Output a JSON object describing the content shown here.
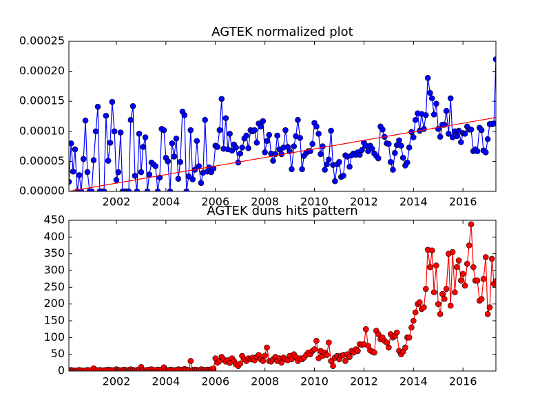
{
  "chart_data": [
    {
      "type": "line",
      "title": "AGTEK normalized plot",
      "x": [
        2000.08,
        2000.17,
        2000.25,
        2000.33,
        2000.42,
        2000.5,
        2000.58,
        2000.67,
        2000.75,
        2000.83,
        2000.92,
        2001,
        2001.08,
        2001.17,
        2001.25,
        2001.33,
        2001.42,
        2001.5,
        2001.58,
        2001.67,
        2001.75,
        2001.83,
        2001.92,
        2002,
        2002.08,
        2002.17,
        2002.25,
        2002.33,
        2002.42,
        2002.5,
        2002.58,
        2002.67,
        2002.75,
        2002.83,
        2002.92,
        2003,
        2003.08,
        2003.17,
        2003.25,
        2003.33,
        2003.42,
        2003.5,
        2003.58,
        2003.67,
        2003.75,
        2003.83,
        2003.92,
        2004,
        2004.08,
        2004.17,
        2004.25,
        2004.33,
        2004.42,
        2004.5,
        2004.58,
        2004.67,
        2004.75,
        2004.83,
        2004.92,
        2005,
        2005.08,
        2005.17,
        2005.25,
        2005.33,
        2005.42,
        2005.5,
        2005.58,
        2005.67,
        2005.75,
        2005.83,
        2005.92,
        2006,
        2006.08,
        2006.17,
        2006.25,
        2006.33,
        2006.42,
        2006.5,
        2006.58,
        2006.67,
        2006.75,
        2006.83,
        2006.92,
        2007,
        2007.08,
        2007.17,
        2007.25,
        2007.33,
        2007.42,
        2007.5,
        2007.58,
        2007.67,
        2007.75,
        2007.83,
        2007.92,
        2008,
        2008.08,
        2008.17,
        2008.25,
        2008.33,
        2008.42,
        2008.5,
        2008.58,
        2008.67,
        2008.75,
        2008.83,
        2008.92,
        2009,
        2009.08,
        2009.17,
        2009.25,
        2009.33,
        2009.42,
        2009.5,
        2009.58,
        2009.67,
        2009.75,
        2009.83,
        2009.92,
        2010,
        2010.08,
        2010.17,
        2010.25,
        2010.33,
        2010.42,
        2010.5,
        2010.58,
        2010.67,
        2010.75,
        2010.83,
        2010.92,
        2011,
        2011.08,
        2011.17,
        2011.25,
        2011.33,
        2011.42,
        2011.5,
        2011.58,
        2011.67,
        2011.75,
        2011.83,
        2011.92,
        2012,
        2012.08,
        2012.17,
        2012.25,
        2012.33,
        2012.42,
        2012.5,
        2012.58,
        2012.67,
        2012.75,
        2012.83,
        2012.92,
        2013,
        2013.08,
        2013.17,
        2013.25,
        2013.33,
        2013.42,
        2013.5,
        2013.58,
        2013.67,
        2013.75,
        2013.83,
        2013.92,
        2014,
        2014.08,
        2014.17,
        2014.25,
        2014.33,
        2014.42,
        2014.5,
        2014.58,
        2014.67,
        2014.75,
        2014.83,
        2014.92,
        2015,
        2015.08,
        2015.17,
        2015.25,
        2015.33,
        2015.42,
        2015.5,
        2015.58,
        2015.67,
        2015.75,
        2015.83,
        2015.92,
        2016,
        2016.08,
        2016.17,
        2016.25,
        2016.33,
        2016.42,
        2016.5,
        2016.58,
        2016.67,
        2016.75,
        2016.83,
        2016.92,
        2017,
        2017.08,
        2017.17,
        2017.25,
        2017.33
      ],
      "series": [
        {
          "color": "#0000ff",
          "values": [
            1.6e-05,
            8e-05,
            3.3e-05,
            7e-05,
            0,
            2.7e-05,
            0,
            5.4e-05,
            0.000118,
            3.2e-05,
            0,
            0,
            5.2e-05,
            0.0001,
            0.000141,
            0,
            0,
            0,
            0.000126,
            5.1e-05,
            8.1e-05,
            0.000149,
            0.0001,
            1.9e-05,
            3.2e-05,
            9.8e-05,
            0,
            0,
            0,
            0,
            0.000119,
            0.000142,
            2.6e-05,
            0,
            9.6e-05,
            3.2e-05,
            7.4e-05,
            9e-05,
            0,
            2.8e-05,
            4.8e-05,
            4.5e-05,
            4.2e-05,
            0,
            2.3e-05,
            0.000104,
            0.000102,
            5.6e-05,
            5e-05,
            0,
            8e-05,
            5.8e-05,
            8.8e-05,
            2.1e-05,
            4.9e-05,
            0.000133,
            0.000127,
            0,
            2.5e-05,
            0.000102,
            2e-05,
            3.6e-05,
            8.4e-05,
            4.2e-05,
            1.4e-05,
            3.1e-05,
            0.000119,
            3.3e-05,
            4e-05,
            3.2e-05,
            3.8e-05,
            7.6e-05,
            7.4e-05,
            0.000102,
            0.000154,
            7.1e-05,
            0.000122,
            7e-05,
            9.6e-05,
            6.8e-05,
            7.8e-05,
            7.3e-05,
            4.8e-05,
            6.3e-05,
            7.3e-05,
            8.8e-05,
            9.3e-05,
            7.2e-05,
            0.000102,
            0.0001,
            0.000102,
            8.1e-05,
            0.000113,
            0.000108,
            0.000117,
            6.5e-05,
            8.4e-05,
            9.4e-05,
            6.3e-05,
            5.1e-05,
            6.2e-05,
            9.3e-05,
            7e-05,
            6.2e-05,
            7.3e-05,
            0.000102,
            7.4e-05,
            6.7e-05,
            3.7e-05,
            7.5e-05,
            9.2e-05,
            0.000119,
            8.9e-05,
            3.7e-05,
            5.9e-05,
            6.4e-05,
            6.7e-05,
            6.7e-05,
            7.9e-05,
            0.000114,
            0.000108,
            9.6e-05,
            6.2e-05,
            7.5e-05,
            3.6e-05,
            4.5e-05,
            5.3e-05,
            0.000101,
            4.4e-05,
            1.7e-05,
            4.5e-05,
            4.9e-05,
            2.4e-05,
            2.6e-05,
            6e-05,
            5.8e-05,
            4.1e-05,
            6e-05,
            6.3e-05,
            6.1e-05,
            6.5e-05,
            6.1e-05,
            6.9e-05,
            8.1e-05,
            7.6e-05,
            6.7e-05,
            7.6e-05,
            7.1e-05,
            6.3e-05,
            5.9e-05,
            5.5e-05,
            0.000108,
            0.000103,
            9.1e-05,
            8e-05,
            7.9e-05,
            4.9e-05,
            3.6e-05,
            6.4e-05,
            7.7e-05,
            8.5e-05,
            7.6e-05,
            5.6e-05,
            4.3e-05,
            4.8e-05,
            7.3e-05,
            9.9e-05,
            9e-05,
            0.000119,
            0.00013,
            0.000101,
            0.000129,
            0.000104,
            0.000127,
            0.000189,
            0.000164,
            0.000155,
            0.000128,
            0.000146,
            0.000104,
            9.1e-05,
            0.000111,
            0.000111,
            0.000134,
            9.6e-05,
            0.000155,
            9e-05,
            0.0001,
            9.2e-05,
            0.000101,
            8.2e-05,
            9.7e-05,
            9.6e-05,
            0.000108,
            0.000103,
            0.000103,
            6.7e-05,
            7e-05,
            6.7e-05,
            0.000106,
            0.000102,
            6.8e-05,
            6.5e-05,
            8.7e-05,
            0.000112,
            0.000112,
            0.000113,
            0.00022
          ]
        }
      ],
      "trend_line": {
        "color": "#ff0000",
        "x": [
          2000.08,
          2017.33
        ],
        "values": [
          0,
          0.000123
        ]
      },
      "xlim": [
        2000.08,
        2017.33
      ],
      "xticks": [
        2002,
        2004,
        2006,
        2008,
        2010,
        2012,
        2014,
        2016
      ],
      "ylim": [
        0,
        0.00025
      ],
      "yticks": [
        {
          "value": 0,
          "label": "0.00000"
        },
        {
          "value": 5e-05,
          "label": "0.00005"
        },
        {
          "value": 0.0001,
          "label": "0.00010"
        },
        {
          "value": 0.00015,
          "label": "0.00015"
        },
        {
          "value": 0.0002,
          "label": "0.00020"
        },
        {
          "value": 0.00025,
          "label": "0.00025"
        }
      ]
    },
    {
      "type": "line",
      "title": "AGTEK duns hits pattern",
      "x": [
        2000.08,
        2000.17,
        2000.25,
        2000.33,
        2000.42,
        2000.5,
        2000.58,
        2000.67,
        2000.75,
        2000.83,
        2000.92,
        2001,
        2001.08,
        2001.17,
        2001.25,
        2001.33,
        2001.42,
        2001.5,
        2001.58,
        2001.67,
        2001.75,
        2001.83,
        2001.92,
        2002,
        2002.08,
        2002.17,
        2002.25,
        2002.33,
        2002.42,
        2002.5,
        2002.58,
        2002.67,
        2002.75,
        2002.83,
        2002.92,
        2003,
        2003.08,
        2003.17,
        2003.25,
        2003.33,
        2003.42,
        2003.5,
        2003.58,
        2003.67,
        2003.75,
        2003.83,
        2003.92,
        2004,
        2004.08,
        2004.17,
        2004.25,
        2004.33,
        2004.42,
        2004.5,
        2004.58,
        2004.67,
        2004.75,
        2004.83,
        2004.92,
        2005,
        2005.08,
        2005.17,
        2005.25,
        2005.33,
        2005.42,
        2005.5,
        2005.58,
        2005.67,
        2005.75,
        2005.83,
        2005.92,
        2006,
        2006.08,
        2006.17,
        2006.25,
        2006.33,
        2006.42,
        2006.5,
        2006.58,
        2006.67,
        2006.75,
        2006.83,
        2006.92,
        2007,
        2007.08,
        2007.17,
        2007.25,
        2007.33,
        2007.42,
        2007.5,
        2007.58,
        2007.67,
        2007.75,
        2007.83,
        2007.92,
        2008,
        2008.08,
        2008.17,
        2008.25,
        2008.33,
        2008.42,
        2008.5,
        2008.58,
        2008.67,
        2008.75,
        2008.83,
        2008.92,
        2009,
        2009.08,
        2009.17,
        2009.25,
        2009.33,
        2009.42,
        2009.5,
        2009.58,
        2009.67,
        2009.75,
        2009.83,
        2009.92,
        2010,
        2010.08,
        2010.17,
        2010.25,
        2010.33,
        2010.42,
        2010.5,
        2010.58,
        2010.67,
        2010.75,
        2010.83,
        2010.92,
        2011,
        2011.08,
        2011.17,
        2011.25,
        2011.33,
        2011.42,
        2011.5,
        2011.58,
        2011.67,
        2011.75,
        2011.83,
        2011.92,
        2012,
        2012.08,
        2012.17,
        2012.25,
        2012.33,
        2012.42,
        2012.5,
        2012.58,
        2012.67,
        2012.75,
        2012.83,
        2012.92,
        2013,
        2013.08,
        2013.17,
        2013.25,
        2013.33,
        2013.42,
        2013.5,
        2013.58,
        2013.67,
        2013.75,
        2013.83,
        2013.92,
        2014,
        2014.08,
        2014.17,
        2014.25,
        2014.33,
        2014.42,
        2014.5,
        2014.58,
        2014.67,
        2014.75,
        2014.83,
        2014.92,
        2015,
        2015.08,
        2015.17,
        2015.25,
        2015.33,
        2015.42,
        2015.5,
        2015.58,
        2015.67,
        2015.75,
        2015.83,
        2015.92,
        2016,
        2016.08,
        2016.17,
        2016.25,
        2016.33,
        2016.42,
        2016.5,
        2016.58,
        2016.67,
        2016.75,
        2016.83,
        2016.92,
        2017,
        2017.08,
        2017.17,
        2017.25,
        2017.33
      ],
      "series": [
        {
          "color": "#ff0000",
          "values": [
            2,
            3,
            2,
            1,
            2,
            3,
            2,
            1,
            2,
            3,
            2,
            3,
            8,
            3,
            2,
            3,
            2,
            2,
            3,
            4,
            3,
            2,
            3,
            5,
            3,
            2,
            3,
            4,
            2,
            3,
            5,
            3,
            2,
            3,
            4,
            12,
            3,
            2,
            3,
            4,
            5,
            2,
            3,
            4,
            3,
            4,
            11,
            3,
            2,
            4,
            3,
            2,
            3,
            5,
            4,
            3,
            6,
            4,
            3,
            30,
            3,
            4,
            3,
            2,
            5,
            4,
            3,
            4,
            3,
            5,
            7,
            38,
            25,
            30,
            42,
            35,
            28,
            32,
            24,
            38,
            30,
            20,
            15,
            22,
            45,
            35,
            30,
            38,
            35,
            40,
            32,
            42,
            48,
            35,
            30,
            46,
            70,
            30,
            28,
            35,
            42,
            30,
            38,
            25,
            40,
            35,
            32,
            45,
            35,
            50,
            42,
            30,
            38,
            35,
            40,
            48,
            55,
            50,
            60,
            65,
            90,
            38,
            60,
            45,
            55,
            48,
            85,
            30,
            15,
            40,
            45,
            35,
            45,
            48,
            30,
            50,
            42,
            60,
            55,
            65,
            60,
            80,
            78,
            80,
            125,
            75,
            62,
            58,
            55,
            120,
            110,
            95,
            100,
            90,
            85,
            70,
            110,
            100,
            105,
            115,
            60,
            50,
            58,
            70,
            100,
            100,
            130,
            150,
            175,
            200,
            205,
            185,
            190,
            245,
            362,
            310,
            360,
            235,
            315,
            200,
            170,
            230,
            215,
            245,
            350,
            195,
            355,
            235,
            310,
            330,
            270,
            290,
            255,
            320,
            375,
            438,
            310,
            270,
            270,
            210,
            215,
            275,
            340,
            170,
            190,
            335,
            260,
            268
          ]
        }
      ],
      "xlim": [
        2000.08,
        2017.33
      ],
      "xticks": [
        2002,
        2004,
        2006,
        2008,
        2010,
        2012,
        2014,
        2016
      ],
      "ylim": [
        0,
        450
      ],
      "yticks": [
        0,
        50,
        100,
        150,
        200,
        250,
        300,
        350,
        400,
        450
      ]
    }
  ]
}
